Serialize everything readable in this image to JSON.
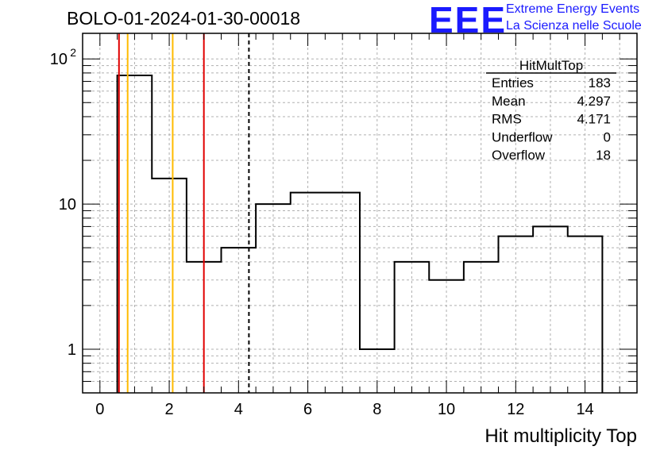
{
  "chart_data": {
    "type": "histogram",
    "title": "BOLO-01-2024-01-30-00018",
    "xlabel": "Hit multiplicity Top",
    "ylabel": "",
    "xlim": [
      -0.5,
      15.5
    ],
    "ylim": [
      0.5,
      150
    ],
    "y_scale": "log",
    "grid": true,
    "bin_edges": [
      0.5,
      1.5,
      2.5,
      3.5,
      4.5,
      5.5,
      6.5,
      7.5,
      8.5,
      9.5,
      10.5,
      11.5,
      12.5,
      13.5,
      14.5
    ],
    "values": [
      77,
      15,
      4,
      5,
      10,
      12,
      12,
      1,
      4,
      3,
      4,
      6,
      7,
      6
    ],
    "x_ticks": [
      {
        "value": 0,
        "label": "0"
      },
      {
        "value": 2,
        "label": "2"
      },
      {
        "value": 4,
        "label": "4"
      },
      {
        "value": 6,
        "label": "6"
      },
      {
        "value": 8,
        "label": "8"
      },
      {
        "value": 10,
        "label": "10"
      },
      {
        "value": 12,
        "label": "12"
      },
      {
        "value": 14,
        "label": "14"
      }
    ],
    "y_ticks": [
      {
        "value": 1,
        "label": "1"
      },
      {
        "value": 10,
        "label": "10"
      },
      {
        "value": 100,
        "label": "10",
        "sup": "2"
      }
    ],
    "reference_lines": [
      {
        "x": 0.55,
        "color": "#e00000",
        "style": "solid"
      },
      {
        "x": 0.8,
        "color": "#ffbb00",
        "style": "solid"
      },
      {
        "x": 2.1,
        "color": "#ffbb00",
        "style": "solid"
      },
      {
        "x": 3.0,
        "color": "#e00000",
        "style": "solid"
      },
      {
        "x": 4.3,
        "color": "#000000",
        "style": "dashed"
      }
    ],
    "stats_box": {
      "name": "HitMultTop",
      "rows": [
        {
          "label": "Entries",
          "value": "183"
        },
        {
          "label": "Mean",
          "value": "4.297"
        },
        {
          "label": "RMS",
          "value": "4.171"
        },
        {
          "label": "Underflow",
          "value": "0"
        },
        {
          "label": "Overflow",
          "value": "18"
        }
      ]
    }
  },
  "logo": {
    "mark": "EEE",
    "line1": "Extreme Energy Events",
    "line2": "La Scienza nelle Scuole",
    "color": "#1a1aff"
  }
}
